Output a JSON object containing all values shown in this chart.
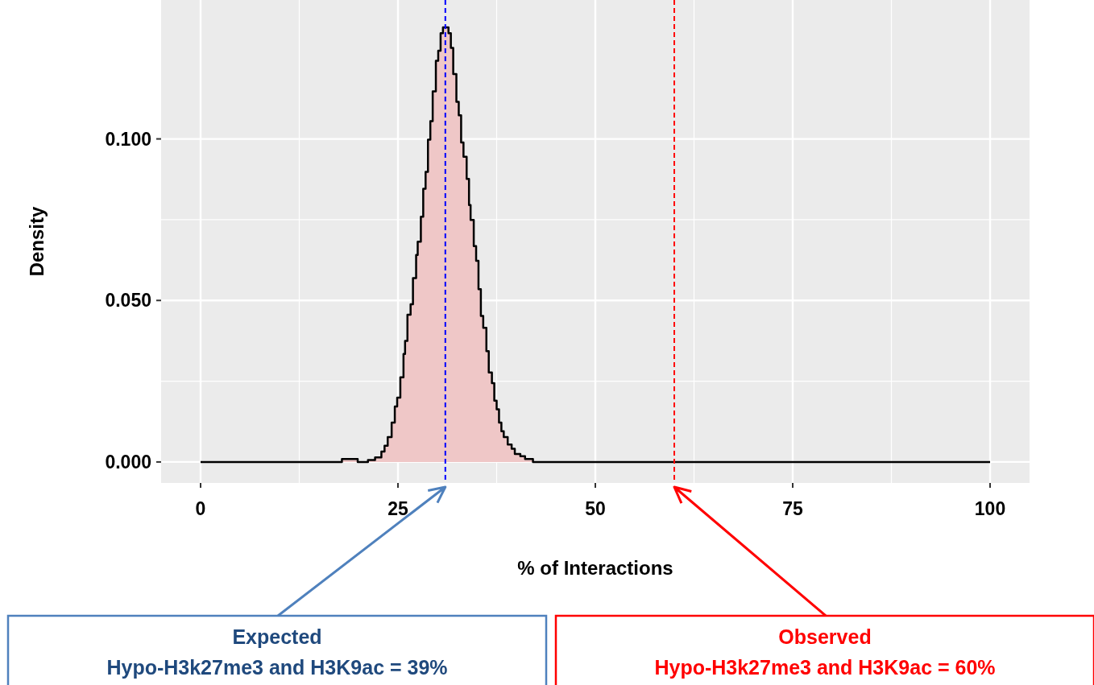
{
  "chart_data": {
    "type": "area",
    "xlabel": "% of Interactions",
    "ylabel": "Density",
    "x": [
      0,
      17.9,
      19.9,
      21.2,
      22.1,
      22.9,
      23.3,
      23.7,
      24.2,
      24.6,
      24.9,
      25.3,
      25.7,
      25.9,
      26.2,
      26.6,
      26.9,
      27.3,
      27.5,
      27.9,
      28.2,
      28.5,
      28.8,
      29.1,
      29.4,
      29.8,
      30.1,
      30.4,
      30.7,
      31.4,
      31.7,
      32.0,
      32.4,
      32.7,
      33.0,
      33.3,
      33.7,
      34.0,
      34.2,
      34.6,
      34.9,
      35.2,
      35.5,
      35.8,
      36.2,
      36.5,
      36.9,
      37.2,
      37.5,
      37.8,
      38.1,
      38.4,
      38.9,
      39.4,
      39.8,
      40.5,
      41.1,
      42.1,
      100
    ],
    "values": [
      0,
      0.0009,
      0,
      0.0006,
      0.0014,
      0.0032,
      0.005,
      0.0077,
      0.0122,
      0.0172,
      0.0199,
      0.0262,
      0.0334,
      0.0375,
      0.0456,
      0.0488,
      0.0569,
      0.0641,
      0.0682,
      0.0759,
      0.0846,
      0.0898,
      0.0998,
      0.1055,
      0.1147,
      0.1242,
      0.1273,
      0.1327,
      0.1345,
      0.1327,
      0.1282,
      0.1201,
      0.1115,
      0.1073,
      0.0989,
      0.0945,
      0.0876,
      0.0795,
      0.0749,
      0.0668,
      0.0623,
      0.0535,
      0.0452,
      0.0415,
      0.0343,
      0.0277,
      0.0244,
      0.019,
      0.0163,
      0.0122,
      0.0095,
      0.0077,
      0.0054,
      0.0041,
      0.0025,
      0.0018,
      0.0009,
      0,
      0
    ],
    "color": "#efc7c7",
    "xlim": [
      -5,
      105
    ],
    "ylim": [
      -0.0065,
      0.143
    ],
    "xticks": [
      0,
      25,
      50,
      75,
      100
    ],
    "yticks": [
      {
        "value": 0,
        "label": "0.000"
      },
      {
        "value": 0.05,
        "label": "0.050"
      },
      {
        "value": 0.1,
        "label": "0.100"
      }
    ],
    "grid": true,
    "ref_lines": [
      {
        "axis": "x",
        "value": 31,
        "color": "#0000ff",
        "line_style": "dashed"
      },
      {
        "axis": "x",
        "value": 60,
        "color": "#ff0000",
        "line_style": "dashed"
      }
    ],
    "annotations": [
      "Expected\nHypo-H3k27me3 and H3K9ac = 39%",
      "Observed\nHypo-H3k27me3 and H3K9ac = 60%"
    ]
  }
}
